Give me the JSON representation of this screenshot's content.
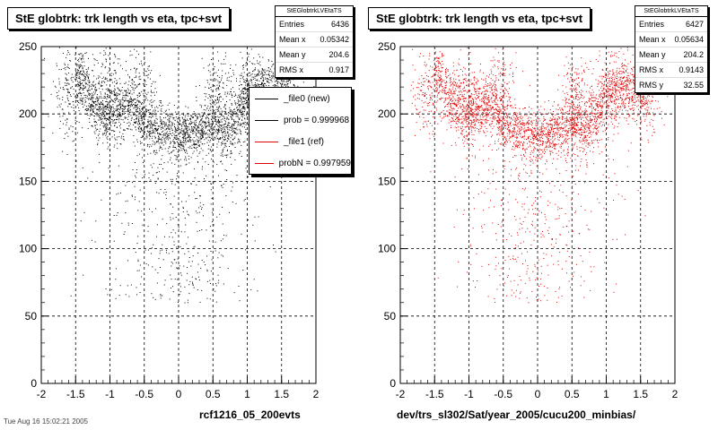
{
  "chart_data": [
    {
      "type": "scatter",
      "title": "StE globtrk: trk length vs eta, tpc+svt",
      "xlabel": "rcf1216_05_200evts",
      "ylabel": "",
      "xlim": [
        -2,
        2
      ],
      "ylim": [
        0,
        250
      ],
      "xticks": [
        "-2",
        "-1.5",
        "-1",
        "-0.5",
        "0",
        "0.5",
        "1",
        "1.5",
        "2"
      ],
      "yticks": [
        "0",
        "50",
        "100",
        "150",
        "200",
        "250"
      ],
      "grid": true,
      "marker_color": "#000000",
      "stats": {
        "name": "StEGlobtrkLVEtaTS",
        "entries": {
          "label": "Entries",
          "value": "6436"
        },
        "mean_x": {
          "label": "Mean x",
          "value": "0.05342"
        },
        "mean_y": {
          "label": "Mean y",
          "value": "204.6"
        },
        "rms_x": {
          "label": "RMS x",
          "value": "0.917"
        }
      },
      "legend": [
        {
          "label": "_file0 (new)",
          "color": "#000000"
        },
        {
          "label": "prob = 0.999968",
          "color": "#000000"
        },
        {
          "label": "_file1 (ref)",
          "color": "#e00000"
        },
        {
          "label": "probN = 0.997959",
          "color": "#e00000"
        }
      ],
      "legend_position": "top-right"
    },
    {
      "type": "scatter",
      "title": "StE globtrk: trk length vs eta, tpc+svt",
      "xlabel": "dev/trs_sl302/Sat/year_2005/cucu200_minbias/",
      "ylabel": "",
      "xlim": [
        -2,
        2
      ],
      "ylim": [
        0,
        250
      ],
      "xticks": [
        "-2",
        "-1.5",
        "-1",
        "-0.5",
        "0",
        "0.5",
        "1",
        "1.5",
        "2"
      ],
      "yticks": [
        "0",
        "50",
        "100",
        "150",
        "200",
        "250"
      ],
      "grid": true,
      "marker_color": "#e00000",
      "stats": {
        "name": "StEGlobtrkLVEtaTS",
        "entries": {
          "label": "Entries",
          "value": "6427"
        },
        "mean_x": {
          "label": "Mean x",
          "value": "0.05634"
        },
        "mean_y": {
          "label": "Mean y",
          "value": "204.2"
        },
        "rms_x": {
          "label": "RMS x",
          "value": "0.9143"
        },
        "rms_y": {
          "label": "RMS y",
          "value": "32.55"
        }
      }
    }
  ],
  "footer_text": "Tue Aug 16 15:02:21 2005"
}
